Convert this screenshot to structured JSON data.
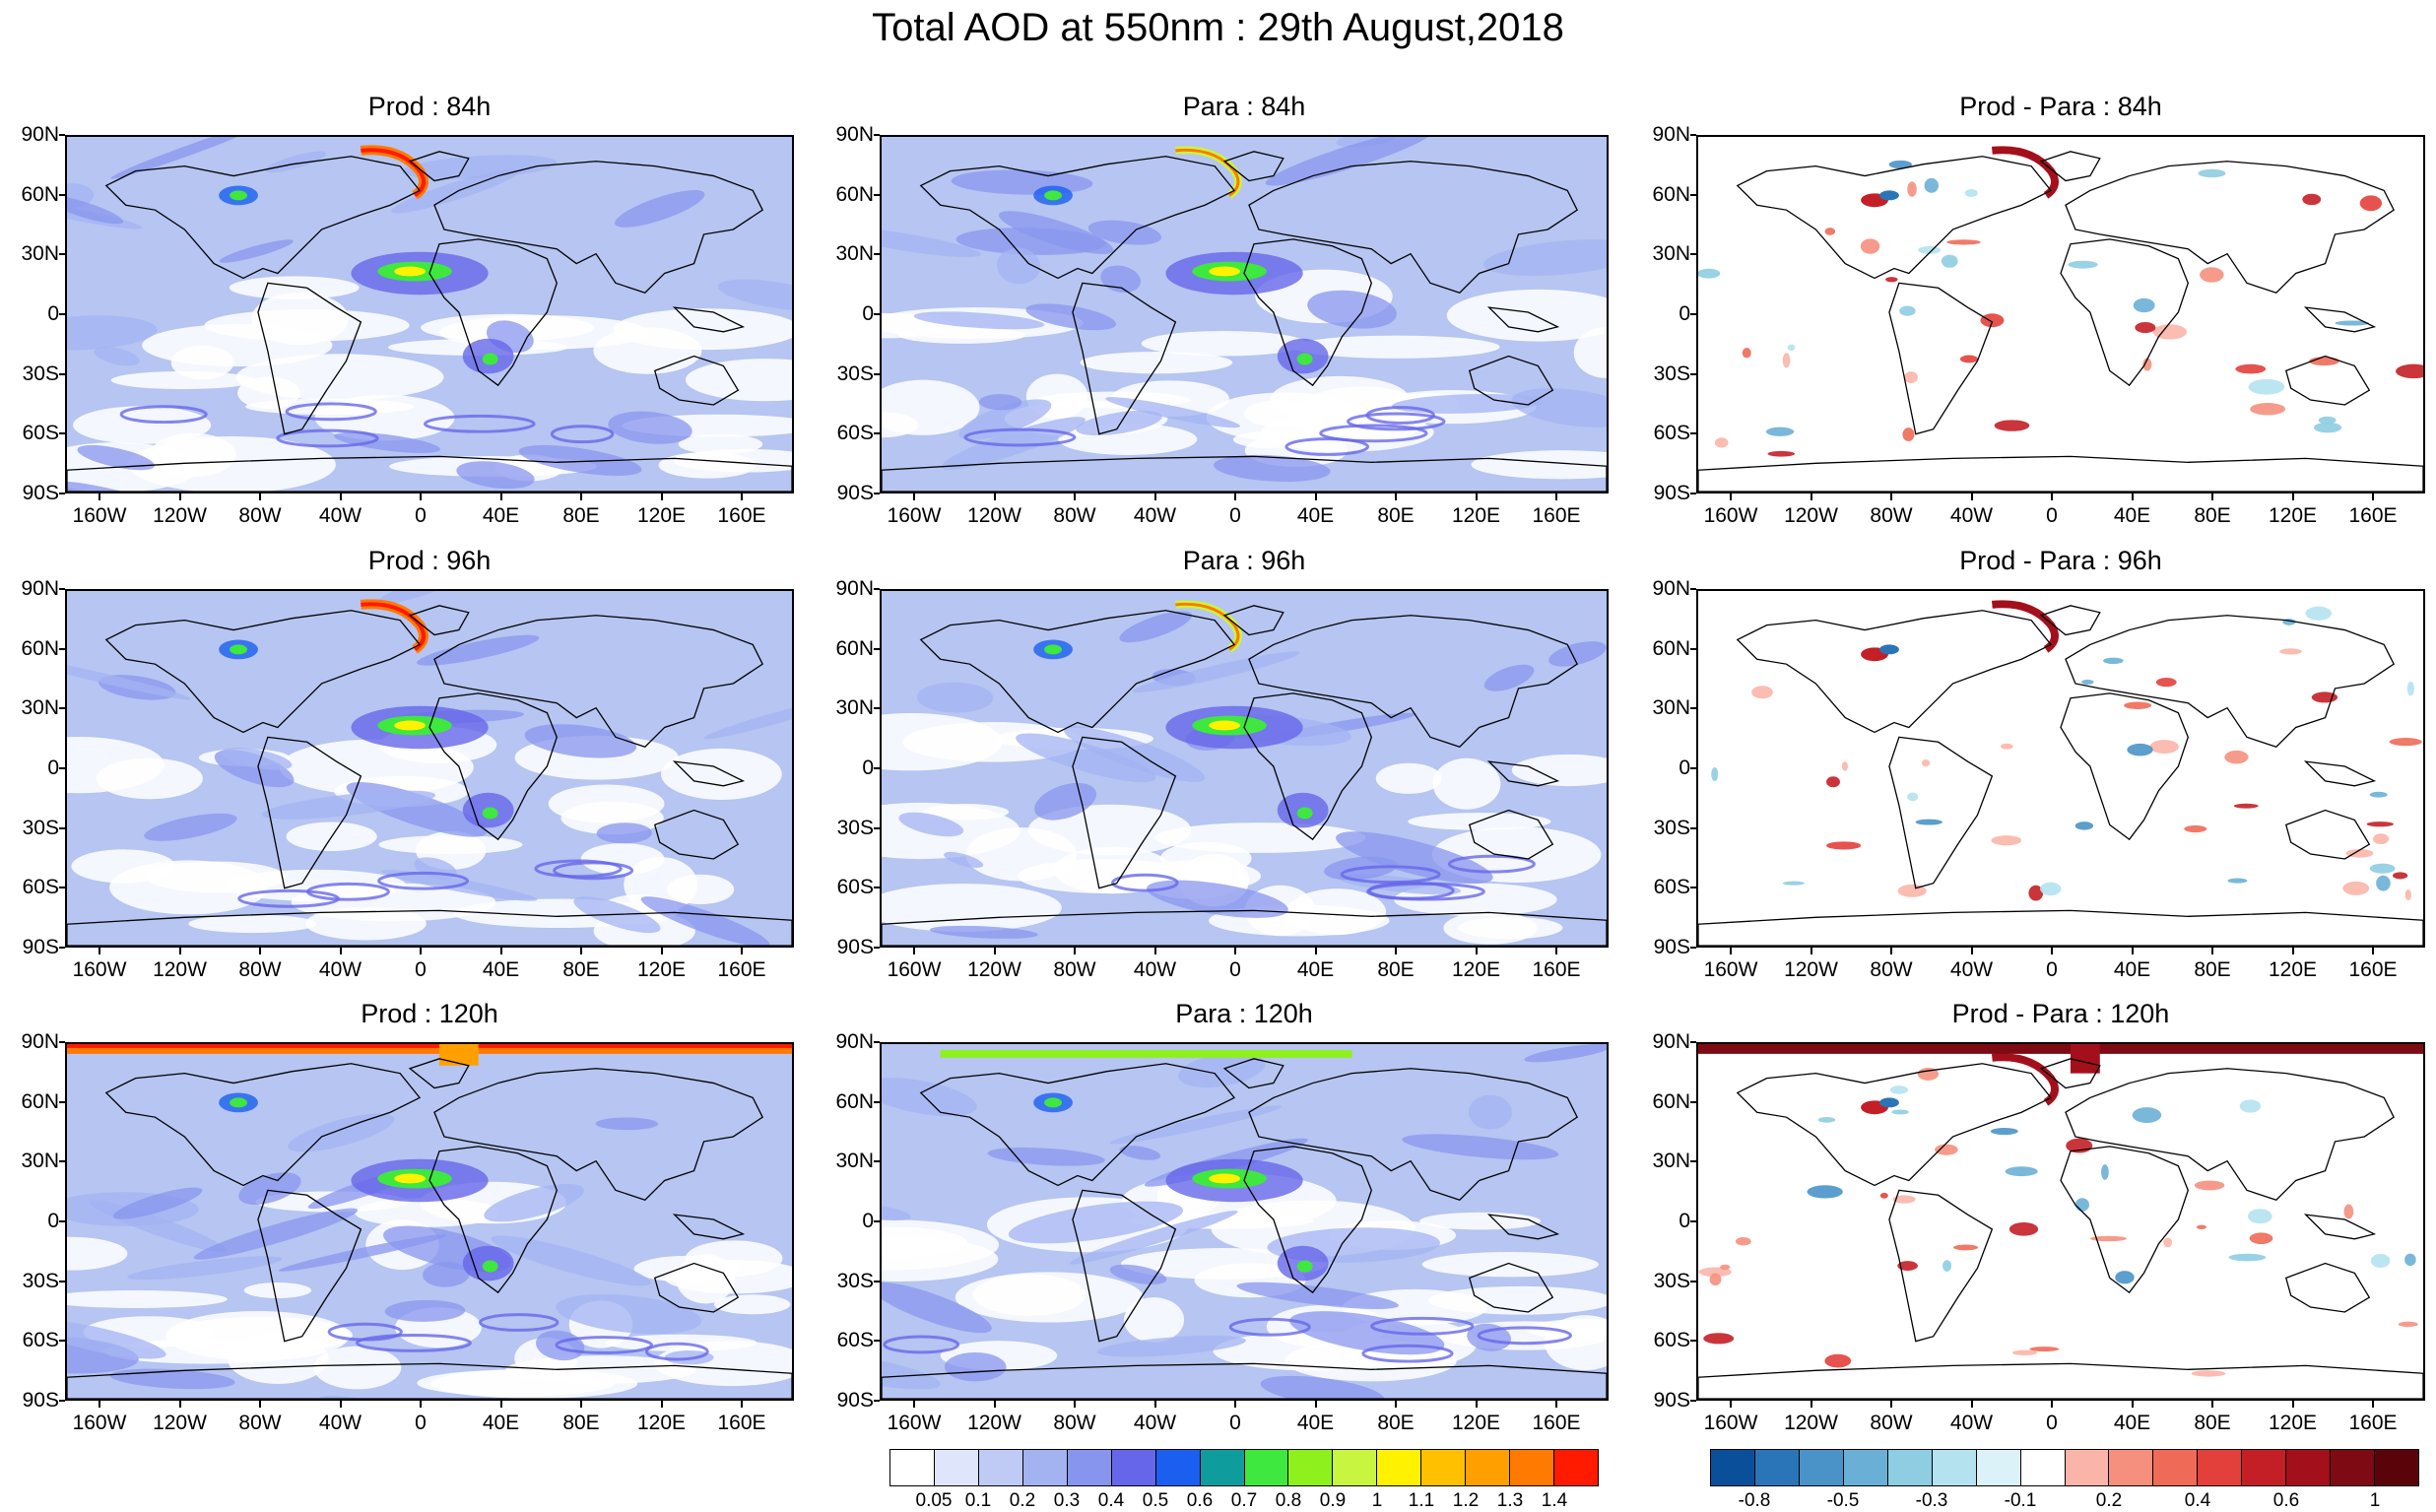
{
  "title": "Total AOD at 550nm : 29th August,2018",
  "panels": [
    {
      "title": "Prod : 84h",
      "kind": "aod"
    },
    {
      "title": "Para : 84h",
      "kind": "aod"
    },
    {
      "title": "Prod - Para : 84h",
      "kind": "diff"
    },
    {
      "title": "Prod : 96h",
      "kind": "aod"
    },
    {
      "title": "Para : 96h",
      "kind": "aod"
    },
    {
      "title": "Prod - Para : 96h",
      "kind": "diff"
    },
    {
      "title": "Prod : 120h",
      "kind": "aod"
    },
    {
      "title": "Para : 120h",
      "kind": "aod"
    },
    {
      "title": "Prod - Para : 120h",
      "kind": "diff"
    }
  ],
  "lat_labels": [
    "90N",
    "60N",
    "30N",
    "0",
    "30S",
    "60S",
    "90S"
  ],
  "lon_labels": [
    "160W",
    "120W",
    "80W",
    "40W",
    "0",
    "40E",
    "80E",
    "120E",
    "160E"
  ],
  "aod_colorbar": {
    "colors": [
      "#ffffff",
      "#dfe5fb",
      "#bfcbf5",
      "#a3b3f1",
      "#8895ee",
      "#6666ea",
      "#1a5ff0",
      "#0f9c9c",
      "#3ee83e",
      "#8ef01c",
      "#c8f540",
      "#fff200",
      "#ffc000",
      "#ffa000",
      "#ff7a00",
      "#ff1a00"
    ],
    "labels": [
      "0.05",
      "0.1",
      "0.2",
      "0.3",
      "0.4",
      "0.5",
      "0.6",
      "0.7",
      "0.8",
      "0.9",
      "1",
      "1.1",
      "1.2",
      "1.3",
      "1.4"
    ]
  },
  "diff_colorbar": {
    "colors": [
      "#0a4f9a",
      "#2a75b8",
      "#4a93c8",
      "#6ab0d6",
      "#8ecde2",
      "#b4e2ef",
      "#dbf2f8",
      "#ffffff",
      "#fbb5a8",
      "#f5907e",
      "#f06a58",
      "#e3403b",
      "#c41f26",
      "#a3101c",
      "#7e0a13",
      "#5a0409"
    ],
    "labels": [
      "-0.8",
      "-0.5",
      "-0.3",
      "-0.1",
      "0.2",
      "0.4",
      "0.6",
      "1"
    ]
  }
}
